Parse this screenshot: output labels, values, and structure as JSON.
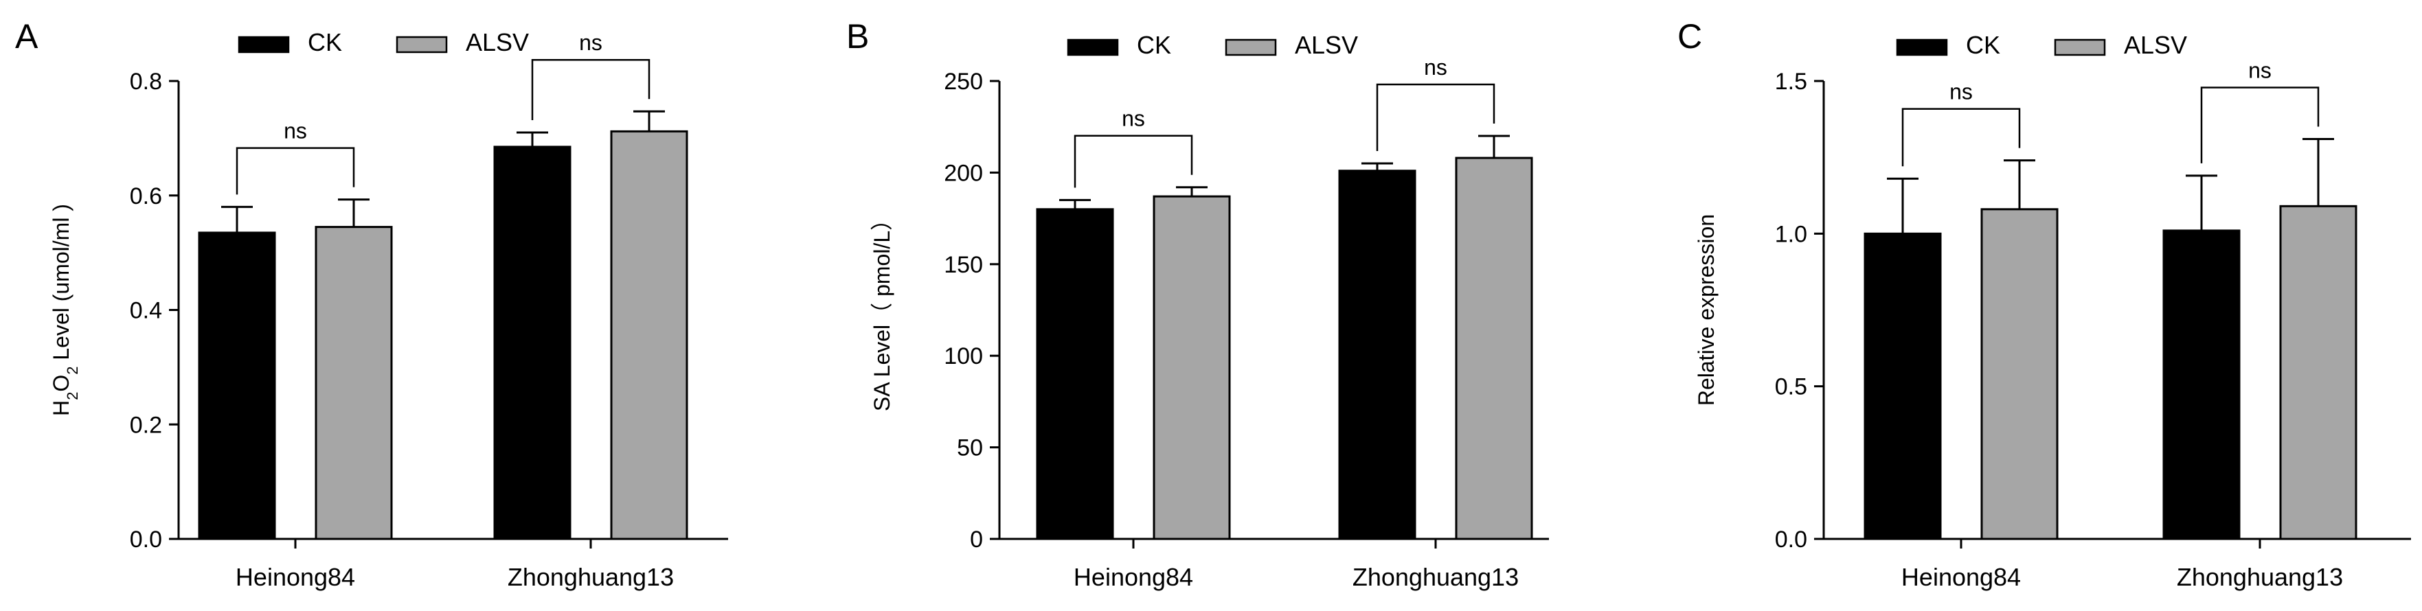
{
  "series_styles": [
    {
      "name": "CK",
      "color": "#000000"
    },
    {
      "name": "ALSV",
      "color": "#a6a6a6"
    }
  ],
  "chart_data": [
    {
      "panel": "A",
      "type": "bar",
      "categories": [
        "Heinong84",
        "Zhonghuang13"
      ],
      "series": [
        {
          "name": "CK",
          "values": [
            0.535,
            0.685
          ],
          "errors": [
            0.045,
            0.025
          ]
        },
        {
          "name": "ALSV",
          "values": [
            0.545,
            0.712
          ],
          "errors": [
            0.048,
            0.035
          ]
        }
      ],
      "ylabel": "Level (umol/ml)",
      "ylabel_prefix": {
        "h": "H",
        "sub1": "2",
        "o": "O",
        "sub2": "2"
      },
      "ylabel_text": " Level (umol/ml )",
      "ylim": [
        0,
        0.8
      ],
      "yticks": [
        0.0,
        0.2,
        0.4,
        0.6,
        0.8
      ],
      "ytick_labels": [
        "0.0",
        "0.2",
        "0.4",
        "0.6",
        "0.8"
      ],
      "significance": [
        "ns",
        "ns"
      ],
      "legend": [
        "CK",
        "ALSV"
      ],
      "legend_position": "top"
    },
    {
      "panel": "B",
      "type": "bar",
      "categories": [
        "Heinong84",
        "Zhonghuang13"
      ],
      "series": [
        {
          "name": "CK",
          "values": [
            180,
            201
          ],
          "errors": [
            5,
            4
          ]
        },
        {
          "name": "ALSV",
          "values": [
            187,
            208
          ],
          "errors": [
            5,
            12
          ]
        }
      ],
      "ylabel": "SA Level（ pmol/L）",
      "ylim": [
        0,
        250
      ],
      "yticks": [
        0,
        50,
        100,
        150,
        200,
        250
      ],
      "ytick_labels": [
        "0",
        "50",
        "100",
        "150",
        "200",
        "250"
      ],
      "significance": [
        "ns",
        "ns"
      ],
      "legend": [
        "CK",
        "ALSV"
      ],
      "legend_position": "top"
    },
    {
      "panel": "C",
      "type": "bar",
      "categories": [
        "Heinong84",
        "Zhonghuang13"
      ],
      "series": [
        {
          "name": "CK",
          "values": [
            1.0,
            1.01
          ],
          "errors": [
            0.18,
            0.18
          ]
        },
        {
          "name": "ALSV",
          "values": [
            1.08,
            1.09
          ],
          "errors": [
            0.16,
            0.22
          ]
        }
      ],
      "ylabel": "Relative expression",
      "ylim": [
        0,
        1.5
      ],
      "yticks": [
        0.0,
        0.5,
        1.0,
        1.5
      ],
      "ytick_labels": [
        "0.0",
        "0.5",
        "1.0",
        "1.5"
      ],
      "significance": [
        "ns",
        "ns"
      ],
      "legend": [
        "CK",
        "ALSV"
      ],
      "legend_position": "top"
    }
  ]
}
